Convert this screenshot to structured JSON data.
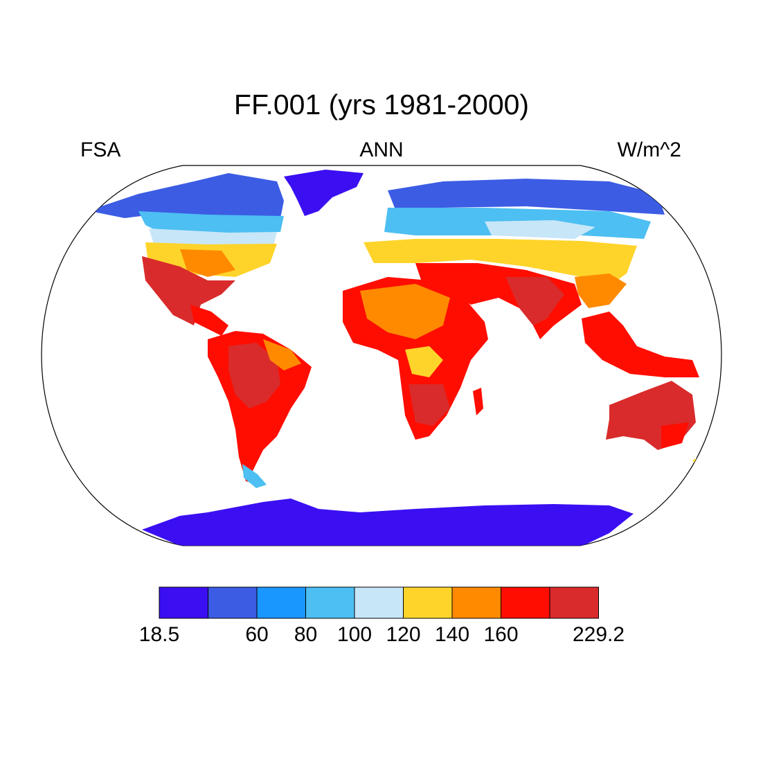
{
  "title": "FF.001 (yrs 1981-2000)",
  "subtitle_left": "FSA",
  "subtitle_center": "ANN",
  "subtitle_right": "W/m^2",
  "colorbar": {
    "colors": [
      "#3b0ff2",
      "#3c5ce4",
      "#1a96ff",
      "#4dbff2",
      "#c7e6f8",
      "#ffd42a",
      "#ff8a00",
      "#ff0d00",
      "#d92b2b"
    ],
    "labels": [
      {
        "text": "18.5",
        "boundary": 0
      },
      {
        "text": "60",
        "boundary": 2
      },
      {
        "text": "80",
        "boundary": 3
      },
      {
        "text": "100",
        "boundary": 4
      },
      {
        "text": "120",
        "boundary": 5
      },
      {
        "text": "140",
        "boundary": 6
      },
      {
        "text": "160",
        "boundary": 7
      },
      {
        "text": "229.2",
        "boundary": 9
      }
    ]
  },
  "map": {
    "projection": "robinson",
    "ocean_color": "#ffffff"
  }
}
